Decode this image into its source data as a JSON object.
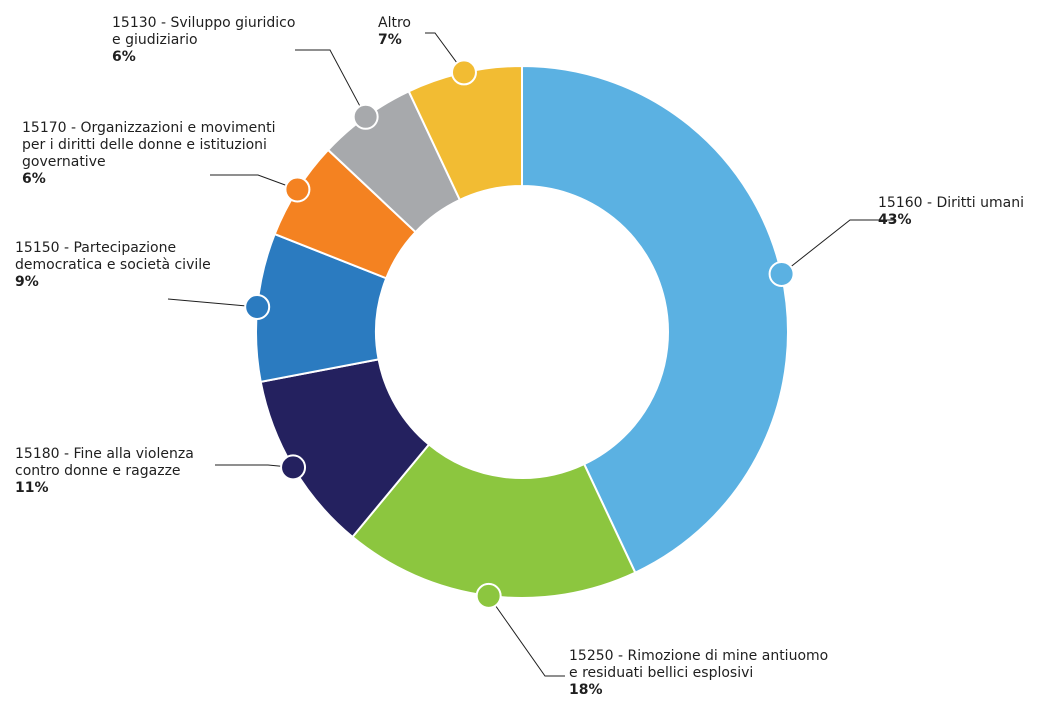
{
  "chart_data": {
    "type": "pie",
    "variant": "donut",
    "legend": "none",
    "slices": [
      {
        "name": "15160 - Diritti umani",
        "label_lines": [
          "15160 - Diritti umani"
        ],
        "value": 43,
        "value_label": "43%",
        "color": "#5BB1E2"
      },
      {
        "name": "15250 - Rimozione di mine antiuomo e residuati bellici esplosivi",
        "label_lines": [
          "15250 - Rimozione di mine antiuomo",
          "e residuati bellici esplosivi"
        ],
        "value": 18,
        "value_label": "18%",
        "color": "#8CC63F"
      },
      {
        "name": "15180 - Fine alla violenza contro donne e ragazze",
        "label_lines": [
          "15180 - Fine alla violenza",
          "contro donne e ragazze"
        ],
        "value": 11,
        "value_label": "11%",
        "color": "#24215F"
      },
      {
        "name": "15150 - Partecipazione democratica e società civile",
        "label_lines": [
          "15150 - Partecipazione",
          "democratica e società civile"
        ],
        "value": 9,
        "value_label": "9%",
        "color": "#2B7BC0"
      },
      {
        "name": "15170 - Organizzazioni e movimenti per i diritti delle donne e istituzioni governative",
        "label_lines": [
          "15170 - Organizzazioni e movimenti",
          "per i diritti delle donne e istituzioni",
          "governative"
        ],
        "value": 6,
        "value_label": "6%",
        "color": "#F48221"
      },
      {
        "name": "15130 - Sviluppo giuridico e giudiziario",
        "label_lines": [
          "15130 - Sviluppo giuridico",
          "e giudiziario"
        ],
        "value": 6,
        "value_label": "6%",
        "color": "#A7A9AC"
      },
      {
        "name": "Altro",
        "label_lines": [
          "Altro"
        ],
        "value": 7,
        "value_label": "7%",
        "color": "#F2BC33"
      }
    ]
  }
}
